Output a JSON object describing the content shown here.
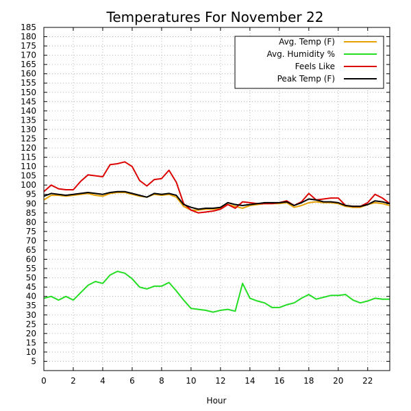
{
  "chart_data": {
    "type": "line",
    "title": "Temperatures For November 22",
    "xlabel": "Hour",
    "ylabel": "",
    "xlim": [
      0,
      23.5
    ],
    "ylim": [
      0,
      185
    ],
    "xticks": [
      0,
      2,
      4,
      6,
      8,
      10,
      12,
      14,
      16,
      18,
      20,
      22
    ],
    "yticks": [
      5,
      10,
      15,
      20,
      25,
      30,
      35,
      40,
      45,
      50,
      55,
      60,
      65,
      70,
      75,
      80,
      85,
      90,
      95,
      100,
      105,
      110,
      115,
      120,
      125,
      130,
      135,
      140,
      145,
      150,
      155,
      160,
      165,
      170,
      175,
      180,
      185
    ],
    "grid": true,
    "legend_position": "top-right",
    "x": [
      0,
      0.5,
      1,
      1.5,
      2,
      2.5,
      3,
      3.5,
      4,
      4.5,
      5,
      5.5,
      6,
      6.5,
      7,
      7.5,
      8,
      8.5,
      9,
      9.5,
      10,
      10.5,
      11,
      11.5,
      12,
      12.5,
      13,
      13.5,
      14,
      14.5,
      15,
      15.5,
      16,
      16.5,
      17,
      17.5,
      18,
      18.5,
      19,
      19.5,
      20,
      20.5,
      21,
      21.5,
      22,
      22.5,
      23,
      23.5
    ],
    "series": [
      {
        "name": "Avg. Temp (F)",
        "color": "#e6a000",
        "values": [
          92,
          94.5,
          94.5,
          94,
          94.5,
          95,
          95.5,
          94.5,
          94,
          95.5,
          96,
          96,
          95,
          94,
          93.5,
          95,
          94.5,
          95,
          93.5,
          88.5,
          86.5,
          86.5,
          87,
          87,
          87.5,
          89.5,
          88.5,
          87.5,
          89,
          89.5,
          90,
          90,
          90,
          90.5,
          88,
          89,
          90.5,
          91,
          90.5,
          90.5,
          90,
          88.5,
          88,
          88,
          89.5,
          90.5,
          90,
          89
        ]
      },
      {
        "name": "Avg. Humidity %",
        "color": "#22dd22",
        "values": [
          39,
          40,
          38,
          40,
          38,
          42,
          46,
          48,
          47,
          51.5,
          53.5,
          52.5,
          49.5,
          45,
          44,
          45.5,
          45.5,
          47.5,
          43,
          38,
          33.5,
          33,
          32.5,
          31.5,
          32.5,
          33,
          32,
          47,
          39,
          37.5,
          36.5,
          34,
          34,
          35.5,
          36.5,
          39,
          41,
          38.5,
          39.5,
          40.5,
          40.5,
          41,
          38,
          36.5,
          37.5,
          39,
          38.5,
          38.5
        ]
      },
      {
        "name": "Feels Like",
        "color": "#dd0000",
        "values": [
          96.5,
          100,
          98,
          97.5,
          97.5,
          102,
          105.5,
          105,
          104.5,
          111,
          111.5,
          112.5,
          110,
          102.5,
          99.5,
          103,
          103.5,
          108,
          101.5,
          90,
          86.5,
          85,
          85.5,
          86,
          87,
          89.5,
          87.5,
          91,
          90.5,
          90,
          90,
          90,
          90.5,
          91.5,
          89,
          91,
          95.5,
          92,
          92.5,
          93,
          93,
          89,
          88.5,
          88.5,
          90.5,
          95,
          93,
          90
        ]
      },
      {
        "name": "Peak Temp (F)",
        "color": "#000000",
        "values": [
          94,
          95.5,
          95,
          94.5,
          95,
          95.5,
          96,
          95.5,
          95,
          96,
          96.5,
          96.5,
          95.5,
          94.5,
          93.5,
          95.5,
          95,
          95.5,
          94.5,
          89.5,
          88,
          87,
          87.5,
          87.5,
          88,
          90.5,
          89.5,
          89,
          89.5,
          90,
          90.5,
          90.5,
          90.5,
          91,
          89,
          90.5,
          92.5,
          92,
          91,
          91,
          90.5,
          89,
          88.5,
          88.5,
          89.5,
          91.5,
          91,
          90
        ]
      }
    ]
  }
}
